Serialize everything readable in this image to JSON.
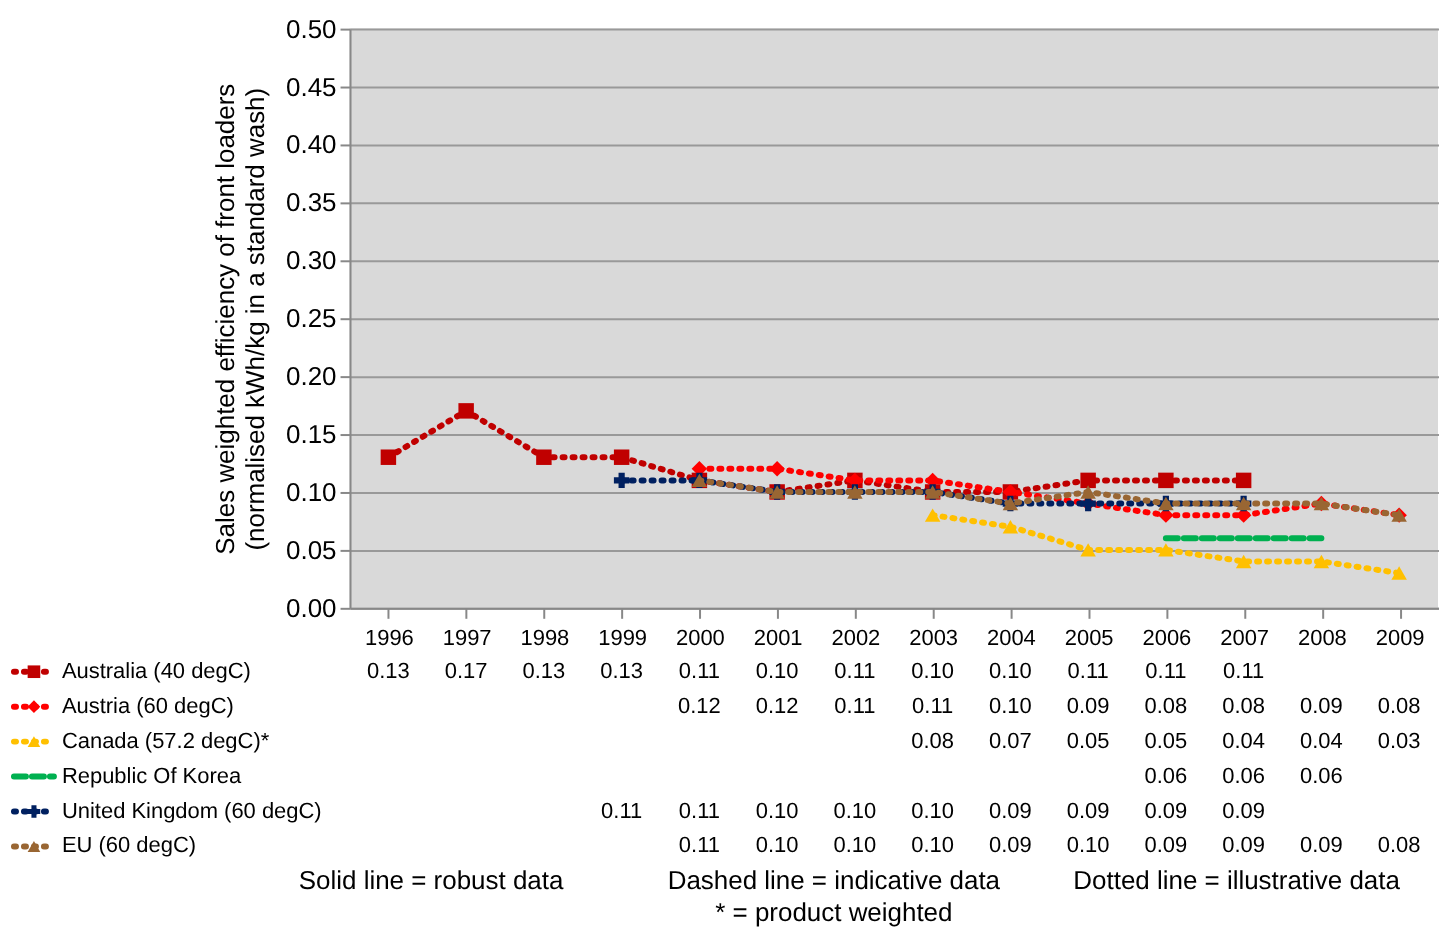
{
  "chart_data": {
    "type": "line",
    "ylabel": "Sales weighted efficiency of front loaders\n(normalised kWh/kg in a standard wash)",
    "categories": [
      "1996",
      "1997",
      "1998",
      "1999",
      "2000",
      "2001",
      "2002",
      "2003",
      "2004",
      "2005",
      "2006",
      "2007",
      "2008",
      "2009"
    ],
    "series": [
      {
        "name": "Australia (40 degC)",
        "color": "#c00000",
        "marker": "square",
        "line_style": "dotted",
        "values": [
          0.13,
          0.17,
          0.13,
          0.13,
          0.11,
          0.1,
          0.11,
          0.1,
          0.1,
          0.11,
          0.11,
          0.11,
          null,
          null
        ],
        "value_labels": [
          "0.13",
          "0.17",
          "0.13",
          "0.13",
          "0.11",
          "0.10",
          "0.11",
          "0.10",
          "0.10",
          "0.11",
          "0.11",
          "0.11",
          null,
          null
        ]
      },
      {
        "name": "Austria (60 degC)",
        "color": "#ff0000",
        "marker": "diamond",
        "line_style": "dotted",
        "values": [
          null,
          null,
          null,
          null,
          0.12,
          0.12,
          0.11,
          0.11,
          0.1,
          0.09,
          0.08,
          0.08,
          0.09,
          0.08
        ],
        "value_labels": [
          null,
          null,
          null,
          null,
          "0.12",
          "0.12",
          "0.11",
          "0.11",
          "0.10",
          "0.09",
          "0.08",
          "0.08",
          "0.09",
          "0.08"
        ]
      },
      {
        "name": "Canada (57.2 degC)*",
        "color": "#ffc000",
        "marker": "triangle",
        "line_style": "dotted",
        "values": [
          null,
          null,
          null,
          null,
          null,
          null,
          null,
          0.08,
          0.07,
          0.05,
          0.05,
          0.04,
          0.04,
          0.03
        ],
        "value_labels": [
          null,
          null,
          null,
          null,
          null,
          null,
          null,
          "0.08",
          "0.07",
          "0.05",
          "0.05",
          "0.04",
          "0.04",
          "0.03"
        ]
      },
      {
        "name": "Republic Of Korea",
        "color": "#00b050",
        "marker": "none",
        "line_style": "dashed",
        "values": [
          null,
          null,
          null,
          null,
          null,
          null,
          null,
          null,
          null,
          null,
          0.06,
          0.06,
          0.06,
          null
        ],
        "value_labels": [
          null,
          null,
          null,
          null,
          null,
          null,
          null,
          null,
          null,
          null,
          "0.06",
          "0.06",
          "0.06",
          null
        ]
      },
      {
        "name": "United Kingdom (60 degC)",
        "color": "#002060",
        "marker": "cross",
        "line_style": "dotted",
        "values": [
          null,
          null,
          null,
          0.11,
          0.11,
          0.1,
          0.1,
          0.1,
          0.09,
          0.09,
          0.09,
          0.09,
          null,
          null
        ],
        "value_labels": [
          null,
          null,
          null,
          "0.11",
          "0.11",
          "0.10",
          "0.10",
          "0.10",
          "0.09",
          "0.09",
          "0.09",
          "0.09",
          null,
          null
        ]
      },
      {
        "name": "EU (60 degC)",
        "color": "#996633",
        "marker": "triangle",
        "line_style": "dotted",
        "values": [
          null,
          null,
          null,
          null,
          0.11,
          0.1,
          0.1,
          0.1,
          0.09,
          0.1,
          0.09,
          0.09,
          0.09,
          0.08
        ],
        "value_labels": [
          null,
          null,
          null,
          null,
          "0.11",
          "0.10",
          "0.10",
          "0.10",
          "0.09",
          "0.10",
          "0.09",
          "0.09",
          "0.09",
          "0.08"
        ]
      }
    ],
    "ylim": [
      0,
      0.5
    ],
    "yticks": [
      {
        "value": 0,
        "label": "0.00"
      },
      {
        "value": 0.05,
        "label": "0.05"
      },
      {
        "value": 0.1,
        "label": "0.10"
      },
      {
        "value": 0.15,
        "label": "0.15"
      },
      {
        "value": 0.2,
        "label": "0.20"
      },
      {
        "value": 0.25,
        "label": "0.25"
      },
      {
        "value": 0.3,
        "label": "0.30"
      },
      {
        "value": 0.35,
        "label": "0.35"
      },
      {
        "value": 0.4,
        "label": "0.40"
      },
      {
        "value": 0.45,
        "label": "0.45"
      },
      {
        "value": 0.5,
        "label": "0.50"
      }
    ],
    "grid": "y",
    "legend": "bottom",
    "annotations": [
      "Solid line = robust data",
      "Dashed line = indicative data",
      "Dotted line = illustrative data",
      "* = product weighted"
    ]
  }
}
